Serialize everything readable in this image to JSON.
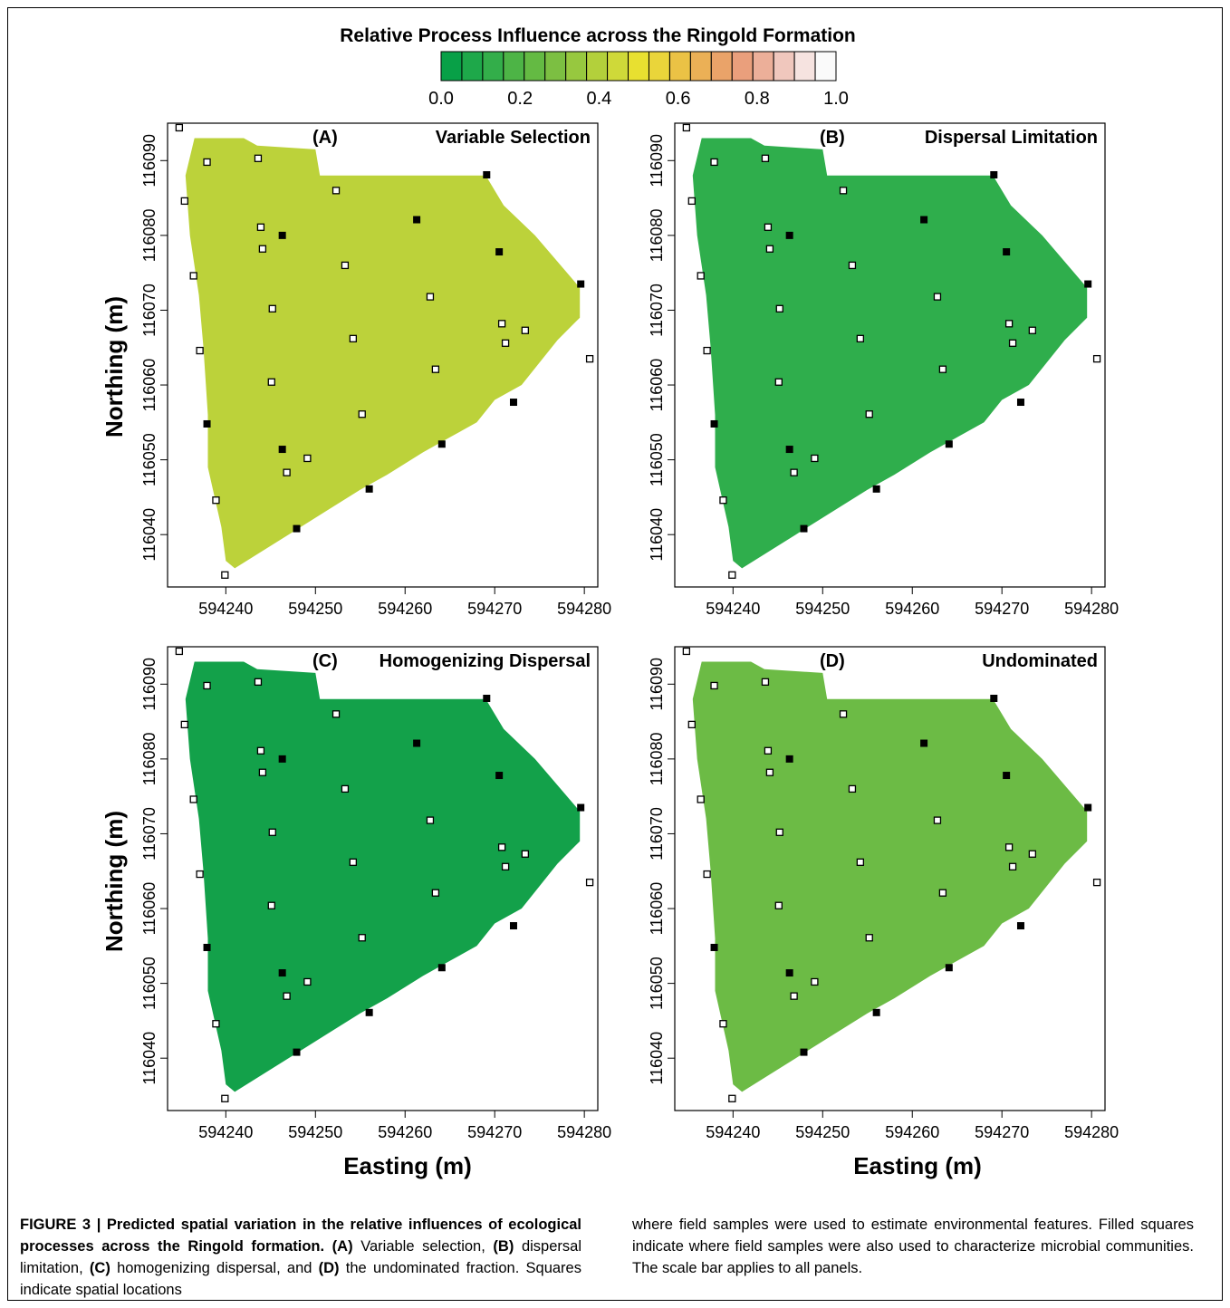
{
  "legend": {
    "title": "Relative Process Influence across the Ringold Formation",
    "ticks": [
      "0.0",
      "0.2",
      "0.4",
      "0.6",
      "0.8",
      "1.0"
    ],
    "colors": [
      "#08a047",
      "#1ea84a",
      "#33ae4a",
      "#4db446",
      "#64ba43",
      "#7cbf42",
      "#97c83f",
      "#b3d03b",
      "#cfd939",
      "#e8e030",
      "#ead53a",
      "#ebc245",
      "#ebb056",
      "#eaa369",
      "#ea9f7c",
      "#ecaf99",
      "#f0c7bd",
      "#f6e3e0",
      "#fafafa"
    ]
  },
  "axes": {
    "x_label": "Easting (m)",
    "y_label": "Northing (m)",
    "x_ticks": [
      "594240",
      "594250",
      "594260",
      "594270",
      "594280"
    ],
    "y_ticks": [
      "116040",
      "116050",
      "116060",
      "116070",
      "116080",
      "116090"
    ],
    "x_values": [
      594240,
      594250,
      594260,
      594270,
      594280
    ],
    "y_values": [
      116040,
      116050,
      116060,
      116070,
      116080,
      116090
    ],
    "xlim": [
      594233.5,
      594281.5
    ],
    "ylim": [
      116033,
      116095
    ]
  },
  "chart_data": [
    {
      "type": "heatmap",
      "panel": "(A)",
      "title": "Variable Selection",
      "base_color": "#bcd23a"
    },
    {
      "type": "heatmap",
      "panel": "(B)",
      "title": "Dispersal Limitation",
      "base_color": "#2fae4c"
    },
    {
      "type": "heatmap",
      "panel": "(C)",
      "title": "Homogenizing Dispersal",
      "base_color": "#13a14a"
    },
    {
      "type": "heatmap",
      "panel": "(D)",
      "title": "Undominated",
      "base_color": "#6cbb45"
    }
  ],
  "samples": {
    "open": [
      [
        594234.8,
        116094.4
      ],
      [
        594235.4,
        116084.6
      ],
      [
        594236.4,
        116074.6
      ],
      [
        594237.1,
        116064.6
      ],
      [
        594238.9,
        116044.6
      ],
      [
        594239.9,
        116034.6
      ],
      [
        594237.9,
        116089.8
      ],
      [
        594243.6,
        116090.3
      ],
      [
        594252.3,
        116086.0
      ],
      [
        594243.9,
        116081.1
      ],
      [
        594244.1,
        116078.2
      ],
      [
        594253.3,
        116076.0
      ],
      [
        594245.2,
        116070.2
      ],
      [
        594262.8,
        116071.8
      ],
      [
        594254.2,
        116066.2
      ],
      [
        594270.8,
        116068.2
      ],
      [
        594271.2,
        116065.6
      ],
      [
        594273.4,
        116067.3
      ],
      [
        594245.1,
        116060.4
      ],
      [
        594263.4,
        116062.1
      ],
      [
        594255.2,
        116056.1
      ],
      [
        594249.1,
        116050.2
      ],
      [
        594246.8,
        116048.3
      ],
      [
        594280.6,
        116063.5
      ]
    ],
    "filled": [
      [
        594269.1,
        116088.1
      ],
      [
        594261.3,
        116082.1
      ],
      [
        594246.3,
        116080.0
      ],
      [
        594270.5,
        116077.8
      ],
      [
        594279.6,
        116073.5
      ],
      [
        594272.1,
        116057.7
      ],
      [
        594237.9,
        116054.8
      ],
      [
        594246.3,
        116051.4
      ],
      [
        594264.1,
        116052.1
      ],
      [
        594256.0,
        116046.1
      ],
      [
        594247.9,
        116040.8
      ]
    ]
  },
  "caption": {
    "label": "FIGURE 3 |",
    "title": " Predicted spatial variation in the relative influences of ecological processes across the Ringold formation.",
    "a": " (A)",
    "t1": " Variable selection,",
    "b": " (B)",
    "t2": " dispersal limitation,",
    "c": " (C)",
    "t3": " homogenizing dispersal, and",
    "d": " (D)",
    "t4": " the undominated fraction. Squares indicate spatial locations",
    "right": "where field samples were used to estimate environmental features. Filled squares indicate where field samples were also used to characterize microbial communities. The scale bar applies to all panels."
  }
}
